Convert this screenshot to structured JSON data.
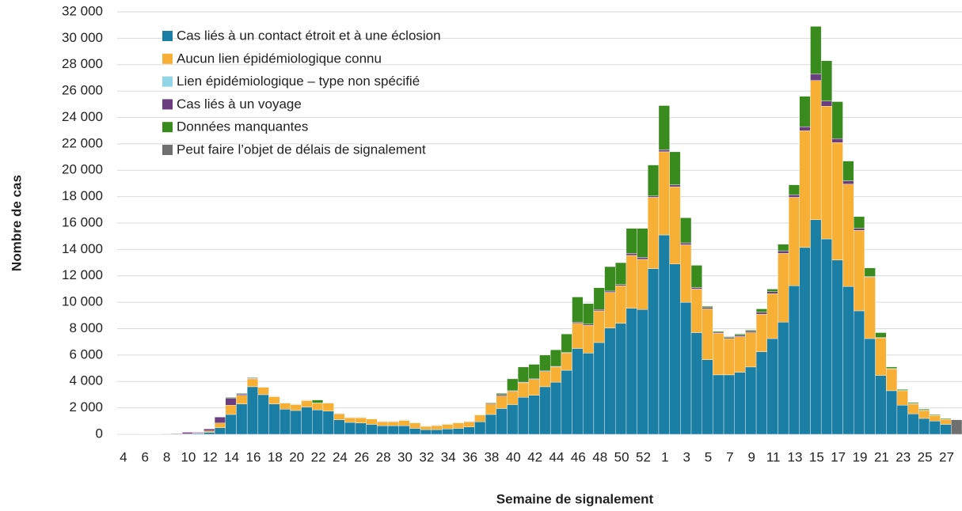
{
  "chart_data": {
    "type": "stacked_bar",
    "x_label": "Semaine de signalement",
    "y_label": "Nombre de cas",
    "categories": [
      "4",
      null,
      "6",
      null,
      "8",
      null,
      "10",
      null,
      "12",
      null,
      "14",
      null,
      "16",
      null,
      "18",
      null,
      "20",
      null,
      "22",
      null,
      "24",
      null,
      "26",
      null,
      "28",
      null,
      "30",
      null,
      "32",
      null,
      "34",
      null,
      "36",
      null,
      "38",
      null,
      "40",
      null,
      "42",
      null,
      "44",
      null,
      "46",
      null,
      "48",
      null,
      "50",
      null,
      "52",
      null,
      "1",
      null,
      "3",
      null,
      "5",
      null,
      "7",
      null,
      "9",
      null,
      "11",
      null,
      "13",
      null,
      "15",
      null,
      "17",
      null,
      "19",
      null,
      "21",
      null,
      "23",
      null,
      "25",
      null,
      "27",
      null
    ],
    "ylim": [
      0,
      32000
    ],
    "yticks": [
      0,
      {
        "value": 2000,
        "label": "2 000"
      },
      {
        "value": 4000,
        "label": "4 000"
      },
      {
        "value": 6000,
        "label": "6 000"
      },
      {
        "value": 8000,
        "label": "8 000"
      },
      {
        "value": 10000,
        "label": "10 000"
      },
      {
        "value": 12000,
        "label": "12 000"
      },
      {
        "value": 14000,
        "label": "14 000"
      },
      {
        "value": 16000,
        "label": "16 000"
      },
      {
        "value": 18000,
        "label": "18 000"
      },
      {
        "value": 20000,
        "label": "20 000"
      },
      {
        "value": 22000,
        "label": "22 000"
      },
      {
        "value": 24000,
        "label": "24 000"
      },
      {
        "value": 26000,
        "label": "26 000"
      },
      {
        "value": 28000,
        "label": "28 000"
      },
      {
        "value": 30000,
        "label": "30 000"
      },
      {
        "value": 32000,
        "label": "32 000"
      }
    ],
    "grid": true,
    "legend": "upper left",
    "series": [
      {
        "name": "Cas liés à un contact étroit et à une éclosion",
        "color": "#1b7fa5",
        "values": [
          0,
          0,
          0,
          0,
          0,
          0,
          20,
          60,
          150,
          500,
          1500,
          2300,
          3600,
          3000,
          2300,
          1900,
          1800,
          2050,
          1850,
          1750,
          1100,
          900,
          850,
          750,
          650,
          650,
          650,
          450,
          350,
          350,
          400,
          450,
          550,
          950,
          1500,
          1950,
          2250,
          2800,
          2950,
          3600,
          3950,
          4850,
          6500,
          6150,
          6950,
          8050,
          8400,
          9550,
          9450,
          12550,
          15100,
          12900,
          10000,
          7700,
          5650,
          4500,
          4500,
          4700,
          5100,
          6250,
          7250,
          8500,
          11250,
          14150,
          16250,
          14800,
          13200,
          11200,
          9350,
          7250,
          4450,
          3300,
          2200,
          1550,
          1200,
          1000,
          750,
          0
        ]
      },
      {
        "name": "Aucun lien épidémiologique connu",
        "color": "#f7b035",
        "values": [
          0,
          0,
          0,
          0,
          0,
          0,
          10,
          30,
          100,
          350,
          700,
          650,
          600,
          550,
          550,
          450,
          450,
          500,
          500,
          600,
          450,
          350,
          400,
          400,
          300,
          300,
          400,
          400,
          250,
          300,
          350,
          400,
          400,
          500,
          800,
          950,
          1000,
          1100,
          1200,
          1150,
          1150,
          1300,
          1900,
          2100,
          2400,
          2700,
          2850,
          4000,
          3800,
          5400,
          6300,
          5850,
          4350,
          3300,
          3850,
          3150,
          2750,
          2700,
          2600,
          2850,
          3400,
          5200,
          6700,
          8850,
          10550,
          10050,
          8900,
          7750,
          6100,
          4650,
          2850,
          1650,
          1100,
          750,
          600,
          420,
          380,
          0
        ]
      },
      {
        "name": "Lien épidémiologique – type non spécifié",
        "color": "#92d5e6",
        "values": [
          0,
          0,
          0,
          0,
          0,
          0,
          0,
          0,
          0,
          0,
          0,
          0,
          0,
          0,
          0,
          0,
          0,
          0,
          0,
          0,
          0,
          0,
          0,
          0,
          0,
          0,
          0,
          0,
          0,
          0,
          0,
          0,
          0,
          0,
          0,
          0,
          0,
          0,
          0,
          0,
          0,
          0,
          0,
          0,
          0,
          0,
          0,
          0,
          0,
          0,
          0,
          0,
          0,
          0,
          0,
          0,
          0,
          0,
          0,
          0,
          0,
          0,
          0,
          0,
          0,
          0,
          0,
          0,
          0,
          0,
          0,
          0,
          0,
          0,
          0,
          0,
          0,
          0
        ]
      },
      {
        "name": "Cas liés à un voyage",
        "color": "#6b3e7f",
        "values": [
          10,
          10,
          20,
          20,
          30,
          40,
          120,
          60,
          150,
          450,
          550,
          100,
          50,
          20,
          20,
          20,
          20,
          20,
          20,
          20,
          20,
          20,
          20,
          20,
          20,
          20,
          20,
          20,
          20,
          20,
          20,
          20,
          20,
          20,
          50,
          100,
          50,
          50,
          50,
          50,
          50,
          50,
          100,
          100,
          100,
          100,
          100,
          150,
          150,
          100,
          150,
          150,
          150,
          120,
          100,
          80,
          80,
          100,
          100,
          150,
          150,
          200,
          200,
          300,
          500,
          400,
          300,
          250,
          150,
          50,
          30,
          30,
          20,
          20,
          20,
          20,
          10,
          0
        ]
      },
      {
        "name": "Données manquantes",
        "color": "#3a8b1e",
        "values": [
          0,
          0,
          0,
          0,
          0,
          0,
          0,
          0,
          0,
          0,
          50,
          50,
          50,
          30,
          30,
          30,
          30,
          30,
          230,
          30,
          30,
          30,
          30,
          30,
          30,
          30,
          30,
          30,
          30,
          30,
          30,
          30,
          30,
          30,
          50,
          100,
          900,
          1150,
          1100,
          1200,
          1250,
          1400,
          1900,
          1550,
          1650,
          1850,
          1650,
          1900,
          2200,
          2350,
          3350,
          2500,
          1900,
          1680,
          100,
          70,
          70,
          100,
          100,
          250,
          200,
          500,
          750,
          2300,
          3600,
          3050,
          2800,
          1500,
          900,
          650,
          370,
          120,
          80,
          80,
          80,
          60,
          60,
          0
        ]
      },
      {
        "name": "Peut faire l’objet de délais de signalement",
        "color": "#6f6f6f",
        "values": [
          0,
          0,
          0,
          0,
          0,
          0,
          0,
          0,
          0,
          0,
          0,
          0,
          0,
          0,
          0,
          0,
          0,
          0,
          0,
          0,
          0,
          0,
          0,
          0,
          0,
          0,
          0,
          0,
          0,
          0,
          0,
          0,
          0,
          0,
          0,
          0,
          0,
          0,
          0,
          0,
          0,
          0,
          0,
          0,
          0,
          0,
          0,
          0,
          0,
          0,
          0,
          0,
          0,
          0,
          0,
          0,
          0,
          0,
          0,
          0,
          0,
          0,
          0,
          0,
          0,
          0,
          0,
          0,
          0,
          0,
          0,
          0,
          0,
          0,
          0,
          0,
          0,
          1100
        ]
      }
    ]
  }
}
